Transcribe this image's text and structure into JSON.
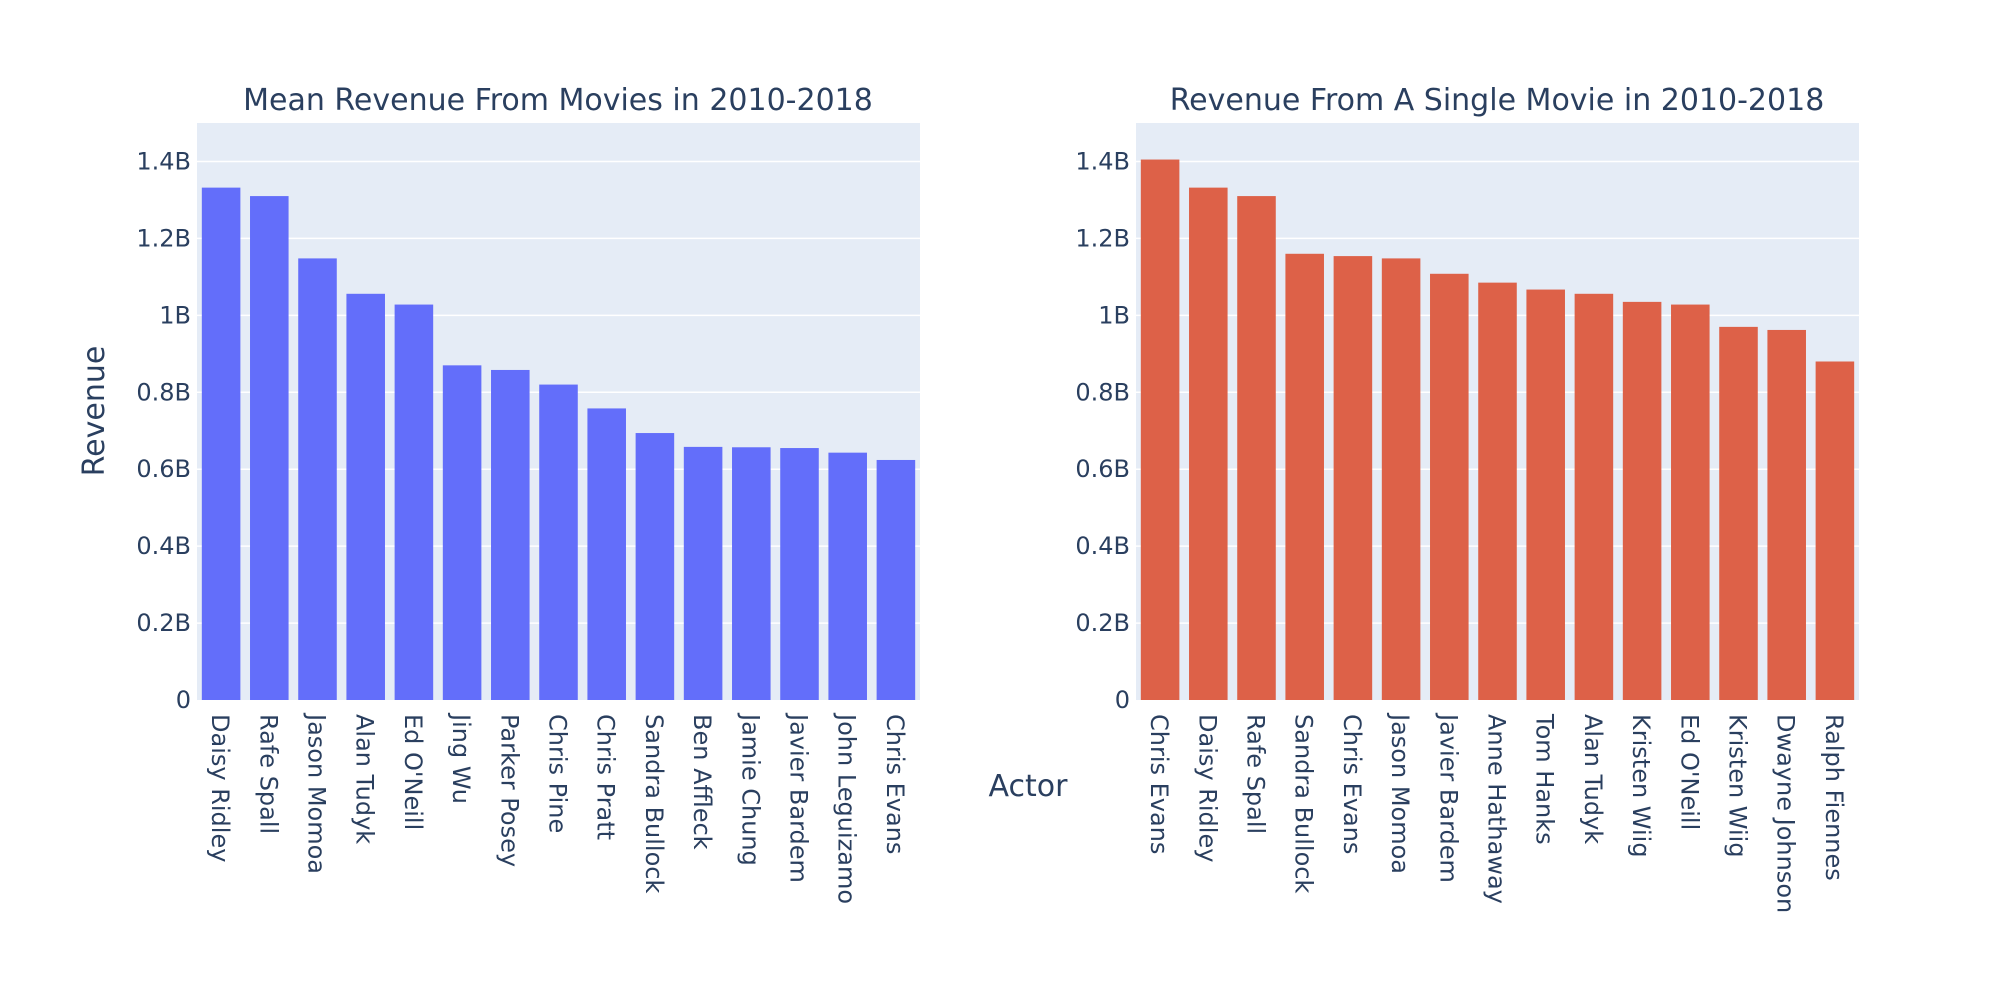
{
  "chart_data": [
    {
      "type": "bar",
      "title": "Mean Revenue From Movies in 2010-2018",
      "ylabel": "Revenue",
      "ylim": [
        0,
        1500000000
      ],
      "yticks": [
        0,
        200000000,
        400000000,
        600000000,
        800000000,
        1000000000,
        1200000000,
        1400000000
      ],
      "ytick_labels": [
        "0",
        "0.2B",
        "0.4B",
        "0.6B",
        "0.8B",
        "1B",
        "1.2B",
        "1.4B"
      ],
      "grid": true,
      "color": "#636efa",
      "categories": [
        "Daisy Ridley",
        "Rafe Spall",
        "Jason Momoa",
        "Alan Tudyk",
        "Ed O'Neill",
        "Jing Wu",
        "Parker Posey",
        "Chris Pine",
        "Chris Pratt",
        "Sandra Bullock",
        "Ben Affleck",
        "Jamie Chung",
        "Javier Bardem",
        "John Leguizamo",
        "Chris Evans"
      ],
      "values": [
        1332000000,
        1310000000,
        1148000000,
        1056000000,
        1028000000,
        870000000,
        858000000,
        820000000,
        758000000,
        694000000,
        658000000,
        657000000,
        655000000,
        643000000,
        624000000
      ]
    },
    {
      "type": "bar",
      "title": "Revenue From A Single Movie in 2010-2018",
      "ylim": [
        0,
        1500000000
      ],
      "yticks": [
        0,
        200000000,
        400000000,
        600000000,
        800000000,
        1000000000,
        1200000000,
        1400000000
      ],
      "ytick_labels": [
        "0",
        "0.2B",
        "0.4B",
        "0.6B",
        "0.8B",
        "1B",
        "1.2B",
        "1.4B"
      ],
      "grid": true,
      "color": "#dd6148",
      "categories": [
        "Chris Evans",
        "Daisy Ridley",
        "Rafe Spall",
        "Sandra Bullock",
        "Chris Evans",
        "Jason Momoa",
        "Javier Bardem",
        "Anne Hathaway",
        "Tom Hanks",
        "Alan Tudyk",
        "Kristen Wiig",
        "Ed O'Neill",
        "Kristen Wiig",
        "Dwayne Johnson",
        "Ralph Fiennes"
      ],
      "values": [
        1405000000,
        1332000000,
        1310000000,
        1160000000,
        1154000000,
        1148000000,
        1108000000,
        1085000000,
        1067000000,
        1056000000,
        1035000000,
        1028000000,
        970000000,
        962000000,
        880000000
      ]
    }
  ],
  "shared_xlabel": "Actor"
}
